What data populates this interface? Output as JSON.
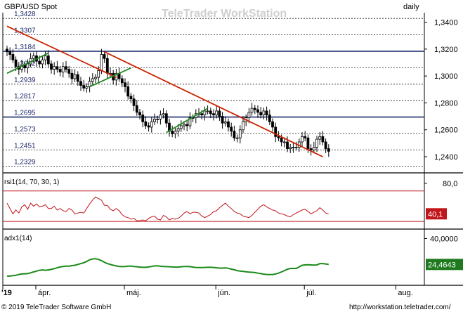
{
  "header": {
    "symbol": "GBP/USD Spot",
    "interval": "daily",
    "watermark": "TeleTrader WorkStation"
  },
  "footer": {
    "copyright": "© 2019 TeleTrader Software GmbH",
    "url": "http://workstation.teletrader.com/"
  },
  "chart_data": [
    {
      "type": "candlestick",
      "title": "GBP/USD Spot",
      "ylim": [
        1.228,
        1.345
      ],
      "y_axis_ticks": [
        "1,3400",
        "1,3200",
        "1,3000",
        "1,2800",
        "1,2600",
        "1,2400"
      ],
      "y_axis_values": [
        1.34,
        1.32,
        1.3,
        1.28,
        1.26,
        1.24
      ],
      "level_labels": [
        "1,3428",
        "1,3307",
        "1,3184",
        "1,3062",
        "1,2939",
        "1,2817",
        "1,2695",
        "1,2573",
        "1,2451",
        "1,2329"
      ],
      "level_values": [
        1.3428,
        1.3307,
        1.3184,
        1.3062,
        1.2939,
        1.2817,
        1.2695,
        1.2573,
        1.2451,
        1.2329
      ],
      "x_axis_labels": [
        "'19",
        "ápr.",
        "máj.",
        "jún.",
        "júl.",
        "aug."
      ],
      "x_axis_label_days": [
        0,
        10,
        40,
        71,
        101,
        132
      ],
      "close": [
        1.318,
        1.316,
        1.312,
        1.307,
        1.305,
        1.308,
        1.306,
        1.309,
        1.313,
        1.315,
        1.311,
        1.309,
        1.312,
        1.315,
        1.309,
        1.305,
        1.307,
        1.305,
        1.303,
        1.307,
        1.305,
        1.302,
        1.298,
        1.301,
        1.296,
        1.293,
        1.291,
        1.292,
        1.296,
        1.298,
        1.299,
        1.304,
        1.316,
        1.313,
        1.302,
        1.302,
        1.297,
        1.302,
        1.298,
        1.295,
        1.292,
        1.285,
        1.283,
        1.278,
        1.273,
        1.271,
        1.266,
        1.263,
        1.262,
        1.266,
        1.268,
        1.268,
        1.271,
        1.272,
        1.265,
        1.259,
        1.257,
        1.259,
        1.261,
        1.263,
        1.264,
        1.263,
        1.269,
        1.269,
        1.272,
        1.272,
        1.271,
        1.274,
        1.274,
        1.272,
        1.271,
        1.274,
        1.27,
        1.265,
        1.266,
        1.262,
        1.259,
        1.254,
        1.254,
        1.26,
        1.266,
        1.269,
        1.273,
        1.276,
        1.275,
        1.273,
        1.271,
        1.274,
        1.271,
        1.266,
        1.262,
        1.255,
        1.254,
        1.251,
        1.251,
        1.246,
        1.247,
        1.247,
        1.247,
        1.251,
        1.255,
        1.254,
        1.246,
        1.245,
        1.247,
        1.253,
        1.255,
        1.251,
        1.246,
        1.244
      ],
      "trendlines": [
        {
          "name": "resistance-1",
          "color": "#cc2200",
          "from": [
            0,
            1.337
          ],
          "to": [
            37,
            1.299
          ]
        },
        {
          "name": "resistance-2",
          "color": "#cc2200",
          "from": [
            33,
            1.318
          ],
          "to": [
            107,
            1.24
          ]
        },
        {
          "name": "support-1",
          "color": "#1f8a1f",
          "from": [
            0,
            1.302
          ],
          "to": [
            14,
            1.317
          ]
        },
        {
          "name": "support-2",
          "color": "#1f8a1f",
          "from": [
            28,
            1.292
          ],
          "to": [
            42,
            1.306
          ]
        },
        {
          "name": "support-3",
          "color": "#1f8a1f",
          "from": [
            54,
            1.258
          ],
          "to": [
            68,
            1.276
          ]
        }
      ]
    },
    {
      "type": "line",
      "title": "rsi1(14, 70, 30, 1)",
      "ylim": [
        20,
        90
      ],
      "y_axis_ticks": [
        "80,0"
      ],
      "y_axis_values": [
        80
      ],
      "levels": [
        70,
        30
      ],
      "last_value_label": "40,1",
      "last_value_color": "#c0161c",
      "series_color": "#c0161c",
      "values": [
        54,
        47,
        40,
        45,
        41,
        49,
        52,
        46,
        54,
        50,
        53,
        49,
        50,
        52,
        47,
        47,
        50,
        45,
        47,
        44,
        43,
        47,
        45,
        40,
        41,
        42,
        41,
        47,
        53,
        58,
        62,
        60,
        58,
        51,
        51,
        46,
        44,
        47,
        44,
        39,
        36,
        35,
        33,
        34,
        31,
        31,
        32,
        31,
        34,
        36,
        37,
        33,
        32,
        38,
        36,
        32,
        34,
        33,
        34,
        37,
        41,
        43,
        40,
        42,
        42,
        41,
        37,
        35,
        37,
        39,
        43,
        44,
        48,
        51,
        54,
        50,
        47,
        43,
        41,
        40,
        37,
        36,
        35,
        38,
        42,
        46,
        50,
        52,
        49,
        47,
        45,
        44,
        41,
        40,
        39,
        37,
        36,
        39,
        41,
        43,
        45,
        46,
        43,
        40,
        42,
        44,
        48,
        45,
        41,
        40
      ]
    },
    {
      "type": "line",
      "title": "adx1(14)",
      "ylim": [
        12,
        44
      ],
      "y_axis_ticks": [
        "40,0000"
      ],
      "y_axis_values": [
        40
      ],
      "last_value_label": "24,4643",
      "last_value_color": "#1f7a1f",
      "series_color": "#1a8a1a",
      "values": [
        17.5,
        17.5,
        17.8,
        18.0,
        18.5,
        18.8,
        18.9,
        19.0,
        19.5,
        20.0,
        20.5,
        21.0,
        21.2,
        21.0,
        21.2,
        21.5,
        22.0,
        22.5,
        23.0,
        23.3,
        23.5,
        23.5,
        23.8,
        24.0,
        24.5,
        25.0,
        25.5,
        26.3,
        27.3,
        27.8,
        27.9,
        27.5,
        26.8,
        25.8,
        25.0,
        24.5,
        24.0,
        23.6,
        23.3,
        23.2,
        23.3,
        23.5,
        23.5,
        23.3,
        23.1,
        22.9,
        22.8,
        22.8,
        23.0,
        23.3,
        23.6,
        23.6,
        23.4,
        23.3,
        23.2,
        23.1,
        23.0,
        22.9,
        22.9,
        23.1,
        23.3,
        23.3,
        23.2,
        22.9,
        22.7,
        22.6,
        22.6,
        22.7,
        22.8,
        22.8,
        22.7,
        22.5,
        22.3,
        22.3,
        22.4,
        22.2,
        21.7,
        21.3,
        20.8,
        20.5,
        20.3,
        20.1,
        19.9,
        19.8,
        19.6,
        19.3,
        19.0,
        18.7,
        18.5,
        18.4,
        18.5,
        18.8,
        19.3,
        20.0,
        20.8,
        21.6,
        22.1,
        22.1,
        22.1,
        23.0,
        24.0,
        24.2,
        24.3,
        24.2,
        24.1,
        24.2,
        25.0,
        25.0,
        24.8,
        24.5
      ]
    }
  ]
}
